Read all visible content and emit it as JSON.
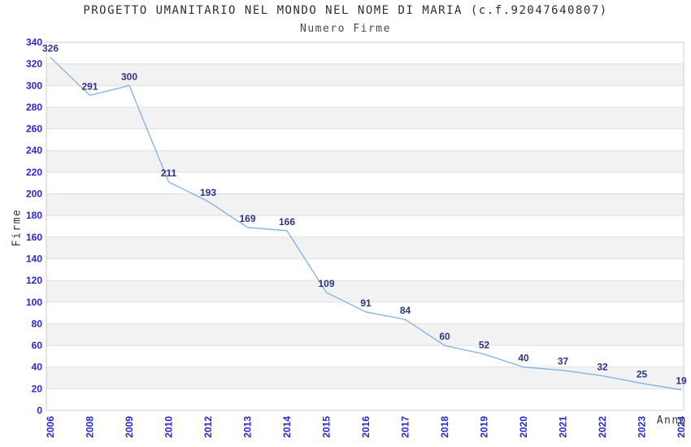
{
  "chart_data": {
    "type": "line",
    "title": "PROGETTO UMANITARIO NEL MONDO NEL NOME DI MARIA (c.f.92047640807)",
    "subtitle": "Numero Firme",
    "xlabel": "Anno",
    "ylabel": "Firme",
    "categories": [
      "2006",
      "2008",
      "2009",
      "2010",
      "2012",
      "2013",
      "2014",
      "2015",
      "2016",
      "2017",
      "2018",
      "2019",
      "2020",
      "2021",
      "2022",
      "2023",
      "2024"
    ],
    "values": [
      326,
      291,
      300,
      211,
      193,
      169,
      166,
      109,
      91,
      84,
      60,
      52,
      40,
      37,
      32,
      25,
      19
    ],
    "ylim": [
      0,
      340
    ],
    "ytick_step": 20,
    "grid": true,
    "banded_background": true,
    "legend_position": "none",
    "point_markers": false
  },
  "colors": {
    "line": "#7fb2e5",
    "tick_label": "#2828d8",
    "data_label": "#323287",
    "band_fill": "#f2f2f2",
    "grid_line": "#e0e0e0",
    "plot_border": "#cccccc",
    "title_text": "#2e2e2e",
    "subtitle_text": "#4a4a4a",
    "axis_title_text": "#333333",
    "background": "#ffffff"
  }
}
